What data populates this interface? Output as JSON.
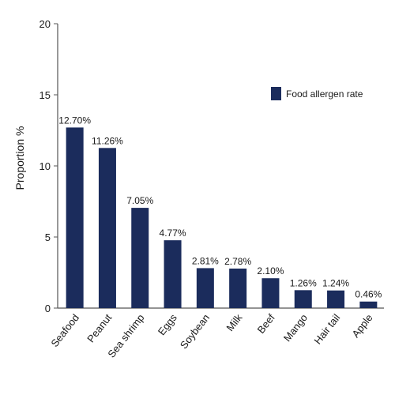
{
  "chart_data": {
    "type": "bar",
    "categories": [
      "Seafood",
      "Peanut",
      "Sea shrimp",
      "Eggs",
      "Soybean",
      "Milk",
      "Beef",
      "Mango",
      "Hair tail",
      "Apple"
    ],
    "series": [
      {
        "name": "Food allergen rate",
        "values": [
          12.7,
          11.26,
          7.05,
          4.77,
          2.81,
          2.78,
          2.1,
          1.26,
          1.24,
          0.46
        ],
        "labels": [
          "12.70%",
          "11.26%",
          "7.05%",
          "4.77%",
          "2.81%",
          "2.78%",
          "2.10%",
          "1.26%",
          "1.24%",
          "0.46%"
        ]
      }
    ],
    "ylabel": "Proportion %",
    "xlabel": "",
    "title": "",
    "ylim": [
      0,
      20
    ],
    "yticks": [
      0,
      5,
      10,
      15,
      20
    ],
    "grid": false,
    "legend": "right",
    "bar_color": "#1b2c5c"
  }
}
